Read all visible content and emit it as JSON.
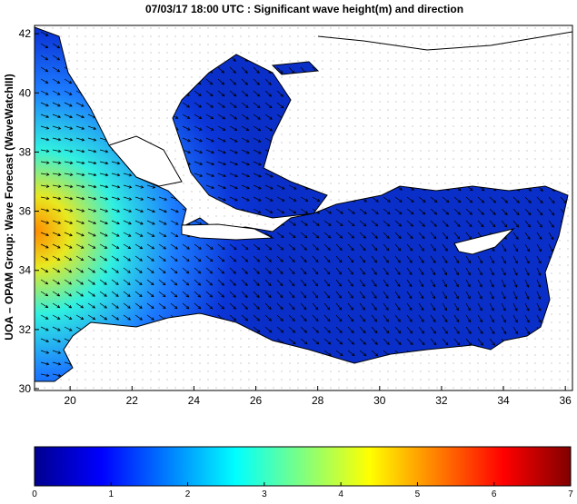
{
  "chart_data": {
    "type": "map",
    "title": "07/03/17 18:00 UTC : Significant wave height(m) and direction",
    "ylabel": "UOA – OPAM Group: Wave Forecast (WaveWatchIII)",
    "xlim": [
      18.85,
      36.23
    ],
    "xticks": [
      20,
      22,
      24,
      26,
      28,
      30,
      32,
      34,
      36
    ],
    "ylim": [
      29.94,
      42.28
    ],
    "yticks": [
      30,
      32,
      34,
      36,
      38,
      40,
      42
    ],
    "colorbar": {
      "lim": [
        0,
        7
      ],
      "ticks": [
        0,
        1,
        2,
        3,
        4,
        5,
        6,
        7
      ],
      "colormap": "jet"
    }
  }
}
